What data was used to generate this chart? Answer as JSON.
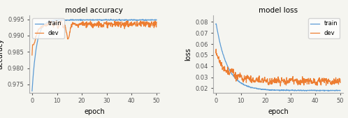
{
  "title_accuracy": "model accuracy",
  "title_loss": "model loss",
  "xlabel": "epoch",
  "ylabel_accuracy": "accuracy",
  "ylabel_loss": "loss",
  "legend_train": "train",
  "legend_dev": "dev",
  "train_color": "#5b9bd5",
  "dev_color": "#ed7d31",
  "line_width": 0.9,
  "acc_ylim": [
    0.9725,
    0.9962
  ],
  "acc_yticks": [
    0.975,
    0.98,
    0.985,
    0.99,
    0.995
  ],
  "loss_ylim": [
    0.016,
    0.086
  ],
  "loss_yticks": [
    0.02,
    0.03,
    0.04,
    0.05,
    0.06,
    0.07,
    0.08
  ],
  "xlim": [
    -1,
    51
  ],
  "xticks": [
    0,
    10,
    20,
    30,
    40,
    50
  ],
  "n_epochs": 500,
  "bg_color": "#f5f5f0"
}
